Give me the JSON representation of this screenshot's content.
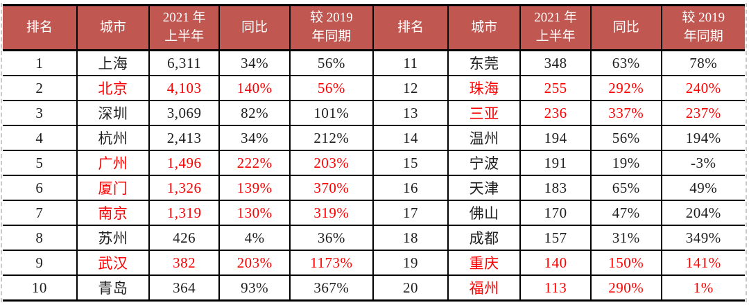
{
  "colors": {
    "header_bg": "#C05751",
    "header_text": "#FFFFFF",
    "highlight_text": "#FE0000",
    "body_text": "#1F1F1F",
    "border": "#000000",
    "dashed_edge": "#C9C9C9"
  },
  "chart_data": {
    "type": "table",
    "columns": {
      "rank": "排名",
      "city": "城市",
      "period_line1": "2021 年",
      "period_line2": "上半年",
      "yoy": "同比",
      "vs2019_line1": "较 2019",
      "vs2019_line2": "年同期"
    },
    "left_rows": [
      {
        "rank": "1",
        "city": "上海",
        "value": "6,311",
        "yoy": "34%",
        "vs2019": "56%",
        "highlight": false
      },
      {
        "rank": "2",
        "city": "北京",
        "value": "4,103",
        "yoy": "140%",
        "vs2019": "56%",
        "highlight": true
      },
      {
        "rank": "3",
        "city": "深圳",
        "value": "3,069",
        "yoy": "82%",
        "vs2019": "101%",
        "highlight": false
      },
      {
        "rank": "4",
        "city": "杭州",
        "value": "2,413",
        "yoy": "34%",
        "vs2019": "212%",
        "highlight": false
      },
      {
        "rank": "5",
        "city": "广州",
        "value": "1,496",
        "yoy": "222%",
        "vs2019": "203%",
        "highlight": true
      },
      {
        "rank": "6",
        "city": "厦门",
        "value": "1,326",
        "yoy": "139%",
        "vs2019": "370%",
        "highlight": true
      },
      {
        "rank": "7",
        "city": "南京",
        "value": "1,319",
        "yoy": "130%",
        "vs2019": "319%",
        "highlight": true
      },
      {
        "rank": "8",
        "city": "苏州",
        "value": "426",
        "yoy": "4%",
        "vs2019": "36%",
        "highlight": false
      },
      {
        "rank": "9",
        "city": "武汉",
        "value": "382",
        "yoy": "203%",
        "vs2019": "1173%",
        "highlight": true
      },
      {
        "rank": "10",
        "city": "青岛",
        "value": "364",
        "yoy": "93%",
        "vs2019": "367%",
        "highlight": false
      }
    ],
    "right_rows": [
      {
        "rank": "11",
        "city": "东莞",
        "value": "348",
        "yoy": "63%",
        "vs2019": "78%",
        "highlight": false
      },
      {
        "rank": "12",
        "city": "珠海",
        "value": "255",
        "yoy": "292%",
        "vs2019": "240%",
        "highlight": true
      },
      {
        "rank": "13",
        "city": "三亚",
        "value": "236",
        "yoy": "337%",
        "vs2019": "237%",
        "highlight": true
      },
      {
        "rank": "14",
        "city": "温州",
        "value": "194",
        "yoy": "56%",
        "vs2019": "194%",
        "highlight": false
      },
      {
        "rank": "15",
        "city": "宁波",
        "value": "191",
        "yoy": "19%",
        "vs2019": "-3%",
        "highlight": false
      },
      {
        "rank": "16",
        "city": "天津",
        "value": "183",
        "yoy": "65%",
        "vs2019": "49%",
        "highlight": false
      },
      {
        "rank": "17",
        "city": "佛山",
        "value": "170",
        "yoy": "47%",
        "vs2019": "204%",
        "highlight": false
      },
      {
        "rank": "18",
        "city": "成都",
        "value": "157",
        "yoy": "31%",
        "vs2019": "349%",
        "highlight": false
      },
      {
        "rank": "19",
        "city": "重庆",
        "value": "140",
        "yoy": "150%",
        "vs2019": "141%",
        "highlight": true
      },
      {
        "rank": "20",
        "city": "福州",
        "value": "113",
        "yoy": "290%",
        "vs2019": "1%",
        "highlight": true
      }
    ]
  }
}
